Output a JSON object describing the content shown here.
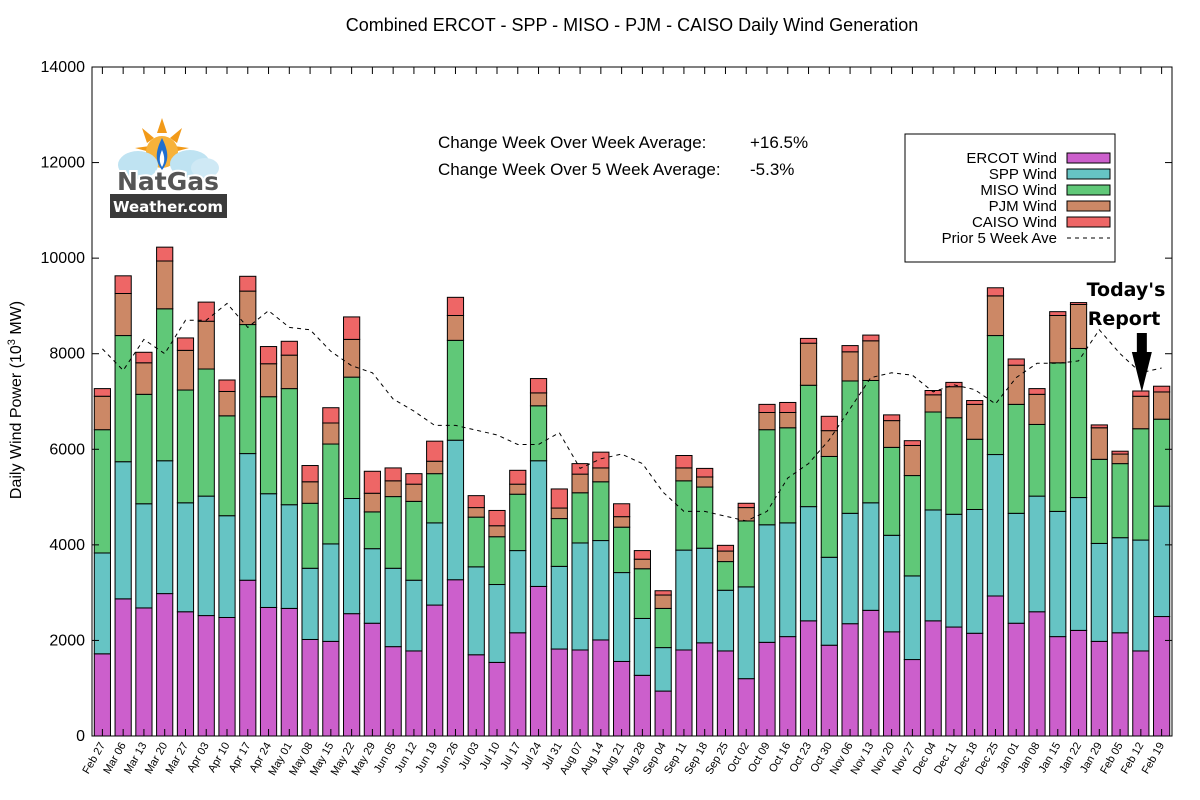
{
  "chart_data": {
    "type": "bar",
    "stacked": true,
    "title": "Combined ERCOT - SPP - MISO - PJM - CAISO Daily Wind Generation",
    "xlabel": "",
    "ylabel": "Daily Wind Power (10",
    "ylabel_sup": "3",
    "ylabel_unit": " MW)",
    "ylim": [
      0,
      14000
    ],
    "yticks": [
      0,
      2000,
      4000,
      6000,
      8000,
      10000,
      12000,
      14000
    ],
    "categories": [
      "Feb 27",
      "Mar 06",
      "Mar 13",
      "Mar 20",
      "Mar 27",
      "Apr 03",
      "Apr 10",
      "Apr 17",
      "Apr 24",
      "May 01",
      "May 08",
      "May 15",
      "May 22",
      "May 29",
      "Jun 05",
      "Jun 12",
      "Jun 19",
      "Jun 26",
      "Jul 03",
      "Jul 10",
      "Jul 17",
      "Jul 24",
      "Jul 31",
      "Aug 07",
      "Aug 14",
      "Aug 21",
      "Aug 28",
      "Sep 04",
      "Sep 11",
      "Sep 18",
      "Sep 25",
      "Oct 02",
      "Oct 09",
      "Oct 16",
      "Oct 23",
      "Oct 30",
      "Nov 06",
      "Nov 13",
      "Nov 20",
      "Nov 27",
      "Dec 04",
      "Dec 11",
      "Dec 18",
      "Dec 25",
      "Jan 01",
      "Jan 08",
      "Jan 15",
      "Jan 22",
      "Jan 29",
      "Feb 05",
      "Feb 12",
      "Feb 19"
    ],
    "series": [
      {
        "name": "ERCOT Wind",
        "color": "#cc5fcc",
        "values": [
          1720,
          2870,
          2680,
          2980,
          2600,
          2520,
          2480,
          3260,
          2690,
          2670,
          2020,
          1980,
          2560,
          2360,
          1870,
          1780,
          2740,
          3270,
          1700,
          1540,
          2160,
          3130,
          1820,
          1800,
          2010,
          1560,
          1270,
          940,
          1800,
          1950,
          1780,
          1200,
          1960,
          2080,
          2410,
          1900,
          2350,
          2630,
          2180,
          1600,
          2410,
          2280,
          2150,
          2930,
          2360,
          2600,
          2080,
          2210,
          1980,
          2160,
          1780,
          2500
        ]
      },
      {
        "name": "SPP Wind",
        "color": "#66c4c4",
        "values": [
          2110,
          2870,
          2180,
          2780,
          2280,
          2500,
          2130,
          2650,
          2380,
          2170,
          1490,
          2040,
          2410,
          1560,
          1640,
          1480,
          1720,
          2920,
          1840,
          1630,
          1720,
          2630,
          1730,
          2240,
          2080,
          1860,
          1190,
          910,
          2090,
          1980,
          1270,
          1920,
          2460,
          2380,
          2390,
          1840,
          2310,
          2250,
          2020,
          1750,
          2320,
          2360,
          2590,
          2960,
          2300,
          2420,
          2620,
          2780,
          2050,
          1990,
          2320,
          2310
        ]
      },
      {
        "name": "MISO Wind",
        "color": "#60c878",
        "values": [
          2580,
          2640,
          2290,
          3180,
          2360,
          2660,
          2090,
          2700,
          2030,
          2430,
          1360,
          2090,
          2540,
          770,
          1500,
          1650,
          1030,
          2090,
          1040,
          1000,
          1180,
          1150,
          1000,
          1050,
          1230,
          950,
          1040,
          820,
          1450,
          1280,
          600,
          1380,
          1990,
          1990,
          2540,
          2110,
          2770,
          2560,
          1840,
          2100,
          2050,
          2020,
          1470,
          2490,
          2280,
          1500,
          3110,
          3120,
          1760,
          1550,
          2330,
          1820
        ]
      },
      {
        "name": "PJM Wind",
        "color": "#cc8866",
        "values": [
          700,
          880,
          660,
          1000,
          830,
          1000,
          510,
          700,
          690,
          700,
          450,
          440,
          790,
          390,
          330,
          360,
          260,
          520,
          200,
          230,
          210,
          270,
          220,
          390,
          290,
          220,
          200,
          280,
          270,
          210,
          220,
          280,
          360,
          320,
          880,
          540,
          610,
          830,
          560,
          630,
          360,
          650,
          730,
          830,
          820,
          630,
          990,
          920,
          660,
          200,
          680,
          570
        ]
      },
      {
        "name": "CAISO Wind",
        "color": "#ee6666",
        "values": [
          160,
          370,
          220,
          290,
          260,
          400,
          240,
          310,
          360,
          290,
          340,
          320,
          470,
          460,
          270,
          220,
          420,
          380,
          250,
          320,
          290,
          300,
          400,
          220,
          330,
          270,
          180,
          90,
          260,
          180,
          120,
          90,
          170,
          210,
          100,
          300,
          130,
          120,
          120,
          100,
          90,
          90,
          80,
          170,
          130,
          120,
          80,
          40,
          60,
          60,
          110,
          120
        ]
      },
      {
        "name": "Prior 5 Week Ave",
        "type": "line",
        "style": "dashed",
        "color": "#000000",
        "values": [
          8100,
          7650,
          8300,
          8000,
          8700,
          8700,
          9050,
          8550,
          8900,
          8550,
          8500,
          8050,
          7750,
          7600,
          7050,
          6800,
          6500,
          6500,
          6400,
          6300,
          6100,
          6100,
          6350,
          5600,
          5800,
          5900,
          5700,
          5100,
          4700,
          4700,
          4600,
          4500,
          4700,
          5400,
          5700,
          6200,
          6850,
          7500,
          7600,
          7550,
          7200,
          7350,
          7250,
          6950,
          7500,
          7800,
          7800,
          7850,
          8500,
          8000,
          7600,
          7700
        ]
      }
    ],
    "legend_position": "top-right",
    "annotations": {
      "wow_label": "Change Week Over Week Average:",
      "wow_value": "+16.5%",
      "wow_color": "#22aa22",
      "w5_label": "Change Week Over 5 Week Average:",
      "w5_value": "-5.3%",
      "w5_color": "#dd1111",
      "today_line1": "Today's",
      "today_line2": "Report",
      "today_index": 50
    }
  },
  "logo": {
    "line1": "NatGas",
    "line2": "Weather.com"
  }
}
